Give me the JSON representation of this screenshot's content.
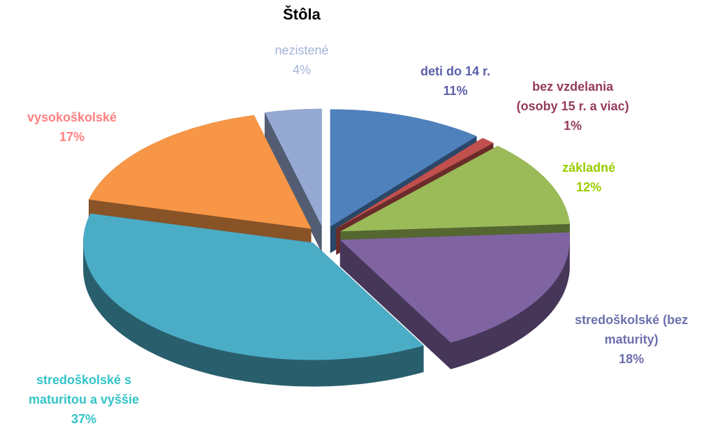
{
  "chart_data": {
    "type": "pie3d",
    "title": "Štôla",
    "categories": [
      "deti do 14 r.",
      "bez vzdelania (osoby 15 r. a viac)",
      "základné",
      "stredoškolské (bez maturity)",
      "stredoškolské s maturitou a vyššie",
      "vysokoškolské",
      "nezistené"
    ],
    "values": [
      11,
      1,
      12,
      18,
      37,
      17,
      4
    ],
    "value_labels": [
      "11%",
      "1%",
      "12%",
      "18%",
      "37%",
      "17%",
      "4%"
    ],
    "colors": [
      "#4f81bd",
      "#c0504d",
      "#9bbb59",
      "#8064a2",
      "#4bacc6",
      "#f79646",
      "#95a9d3"
    ],
    "label_colors": [
      "#5b5fa8",
      "#953a5d",
      "#99cc00",
      "#6e6fae",
      "#33c4c8",
      "#ff8080",
      "#a3b4d8"
    ]
  }
}
